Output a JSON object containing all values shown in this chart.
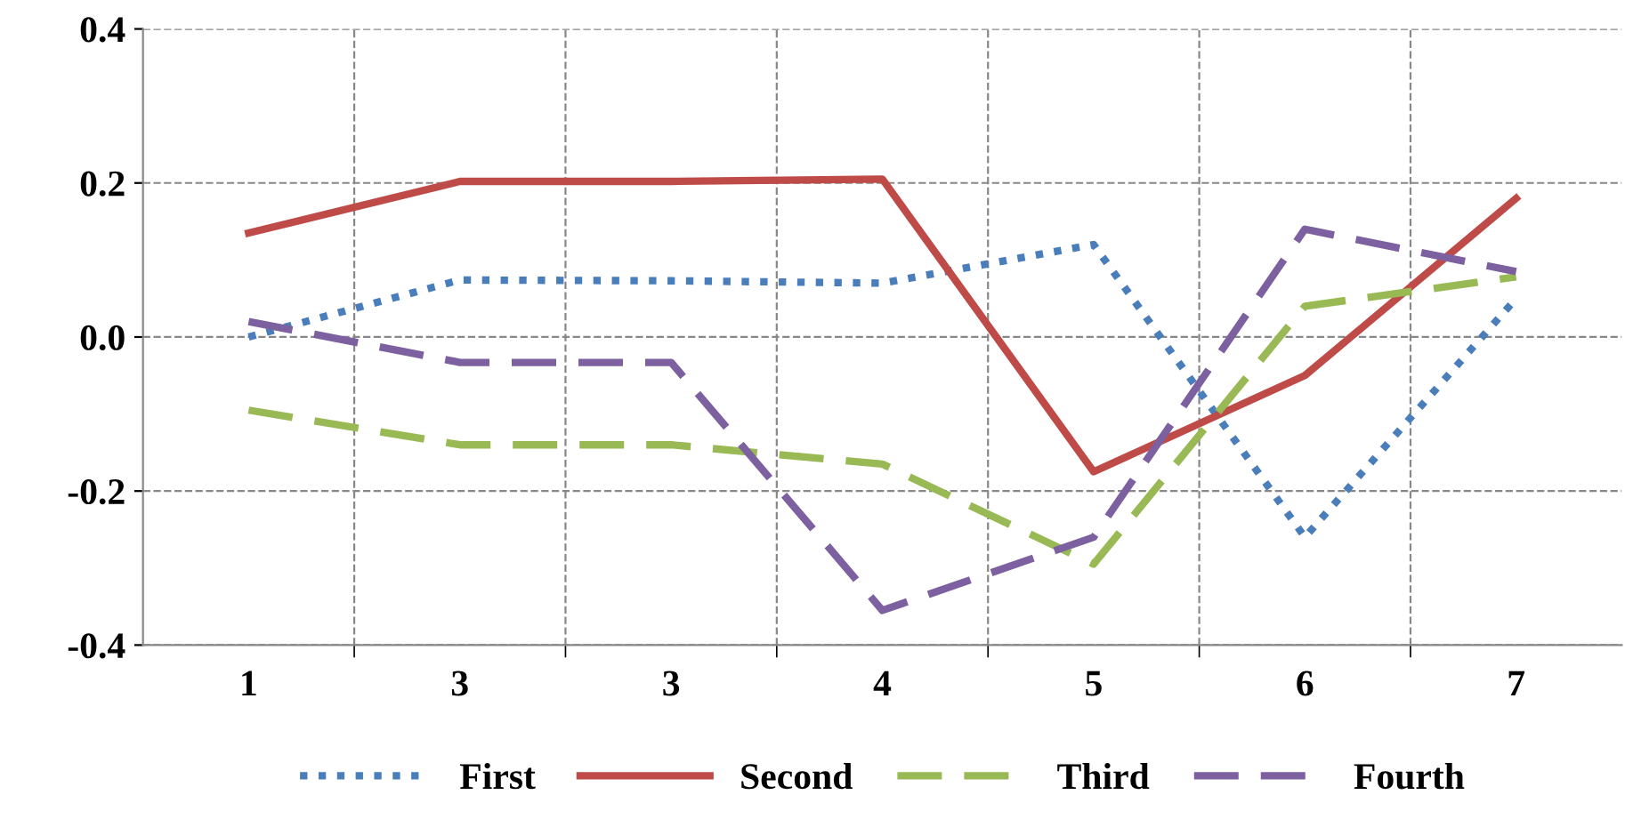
{
  "chart_data": {
    "type": "line",
    "categories": [
      "1",
      "3",
      "3",
      "4",
      "5",
      "6",
      "7"
    ],
    "series": [
      {
        "name": "First",
        "color": "#4a7ebb",
        "line_style": "dotted",
        "values": [
          0.0,
          0.074,
          0.073,
          0.07,
          0.12,
          -0.26,
          0.05
        ]
      },
      {
        "name": "Second",
        "color": "#be4b48",
        "line_style": "solid",
        "values": [
          0.135,
          0.202,
          0.202,
          0.205,
          -0.175,
          -0.05,
          0.18
        ]
      },
      {
        "name": "Third",
        "color": "#98b954",
        "line_style": "dashed",
        "values": [
          -0.095,
          -0.14,
          -0.14,
          -0.165,
          -0.295,
          0.04,
          0.078
        ]
      },
      {
        "name": "Fourth",
        "color": "#7d60a0",
        "line_style": "dashed",
        "values": [
          0.02,
          -0.033,
          -0.033,
          -0.355,
          -0.26,
          0.14,
          0.085
        ]
      }
    ],
    "ylim": [
      -0.4,
      0.4
    ],
    "yticks": [
      0.4,
      0.2,
      {
        "value": 0,
        "label": "0.0"
      },
      -0.2,
      -0.4
    ],
    "grid": true,
    "legend": "bottom",
    "marker": "none"
  }
}
